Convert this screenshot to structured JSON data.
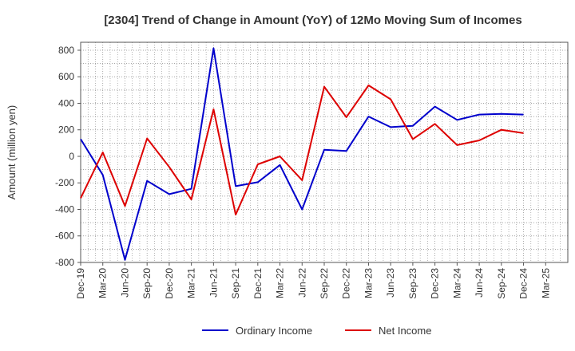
{
  "chart_data": {
    "type": "line",
    "title": "[2304]  Trend of Change in Amount (YoY) of 12Mo Moving Sum of Incomes",
    "xlabel": "",
    "ylabel": "Amount (million yen)",
    "ylim": [
      -800,
      860
    ],
    "yticks": [
      800,
      600,
      400,
      200,
      0,
      -200,
      -400,
      -600,
      -800
    ],
    "x_tick_labels": [
      "Dec-19",
      "Mar-20",
      "Jun-20",
      "Sep-20",
      "Dec-20",
      "Mar-21",
      "Jun-21",
      "Sep-21",
      "Dec-21",
      "Mar-22",
      "Jun-22",
      "Sep-22",
      "Dec-22",
      "Mar-23",
      "Jun-23",
      "Sep-23",
      "Dec-23",
      "Mar-24",
      "Jun-24",
      "Sep-24",
      "Dec-24",
      "Mar-25"
    ],
    "grid": true,
    "legend_position": "bottom-center",
    "series": [
      {
        "name": "Ordinary Income",
        "color": "#0000cc",
        "values": [
          130,
          -140,
          -780,
          -185,
          -285,
          -245,
          815,
          -225,
          -195,
          -65,
          -400,
          50,
          40,
          300,
          220,
          230,
          375,
          275,
          315,
          320,
          315
        ]
      },
      {
        "name": "Net Income",
        "color": "#dd0000",
        "values": [
          -315,
          30,
          -375,
          135,
          -80,
          -325,
          355,
          -440,
          -60,
          0,
          -180,
          525,
          295,
          535,
          430,
          130,
          245,
          85,
          120,
          200,
          175
        ]
      }
    ]
  }
}
